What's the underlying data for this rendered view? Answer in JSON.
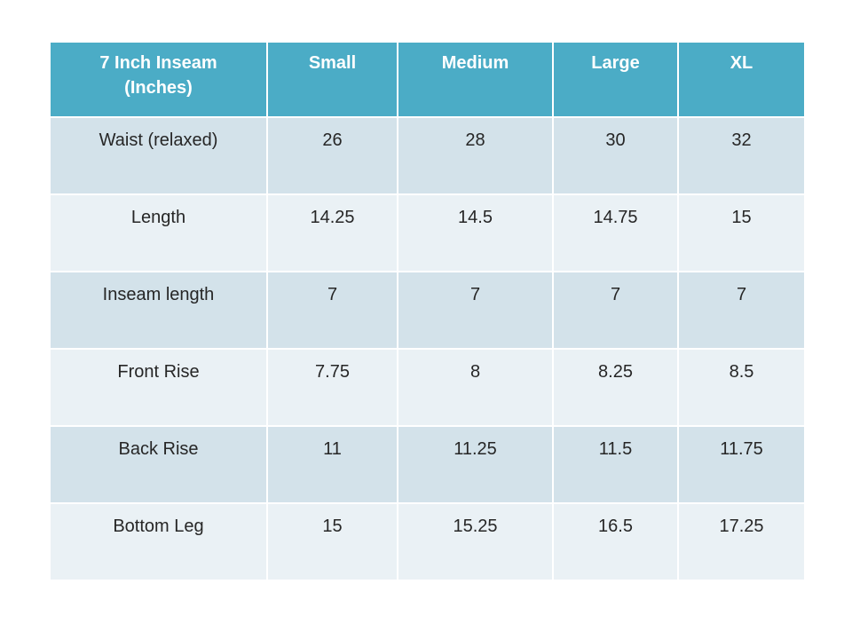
{
  "colors": {
    "header_bg": "#4BACC6",
    "header_text": "#FFFFFF",
    "body_text": "#262626",
    "band_dark": "#D3E2EA",
    "band_light": "#EAF1F5",
    "grid_line": "#FFFFFF",
    "page_bg": "#FFFFFF"
  },
  "chart_data": {
    "type": "table",
    "title": "7 Inch Inseam (Inches)",
    "corner_header": "7 Inch Inseam\n(Inches)",
    "size_headers": [
      "Small",
      "Medium",
      "Large",
      "XL"
    ],
    "rows": [
      {
        "label": "Waist (relaxed)",
        "values": [
          "26",
          "28",
          "30",
          "32"
        ]
      },
      {
        "label": "Length",
        "values": [
          "14.25",
          "14.5",
          "14.75",
          "15"
        ]
      },
      {
        "label": "Inseam length",
        "values": [
          "7",
          "7",
          "7",
          "7"
        ]
      },
      {
        "label": "Front Rise",
        "values": [
          "7.75",
          "8",
          "8.25",
          "8.5"
        ]
      },
      {
        "label": "Back Rise",
        "values": [
          "11",
          "11.25",
          "11.5",
          "11.75"
        ]
      },
      {
        "label": "Bottom Leg",
        "values": [
          "15",
          "15.25",
          "16.5",
          "17.25"
        ]
      }
    ]
  }
}
